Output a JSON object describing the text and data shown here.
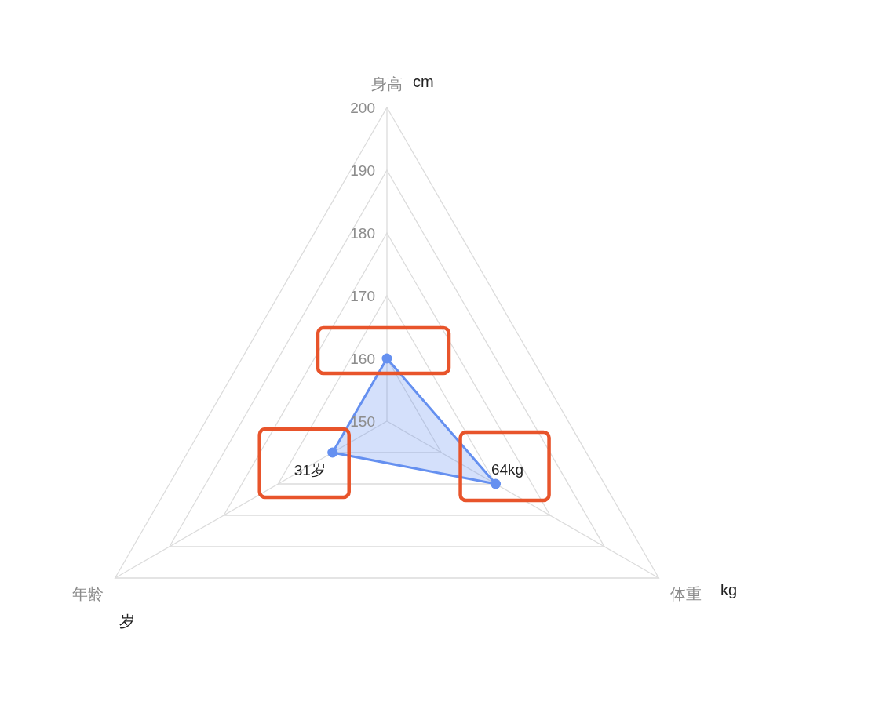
{
  "chart_data": {
    "type": "radar",
    "categories": [
      "身高",
      "体重",
      "年龄"
    ],
    "series": [
      {
        "color": "#6590f0",
        "values": [
          160,
          170,
          160
        ]
      }
    ],
    "ylim": [
      150,
      200
    ],
    "yticks": [
      150,
      160,
      170,
      180,
      190,
      200
    ],
    "grid": true,
    "marker": "circle",
    "annotations": [
      "cm",
      "kg",
      "岁",
      "64kg",
      "31岁"
    ]
  }
}
